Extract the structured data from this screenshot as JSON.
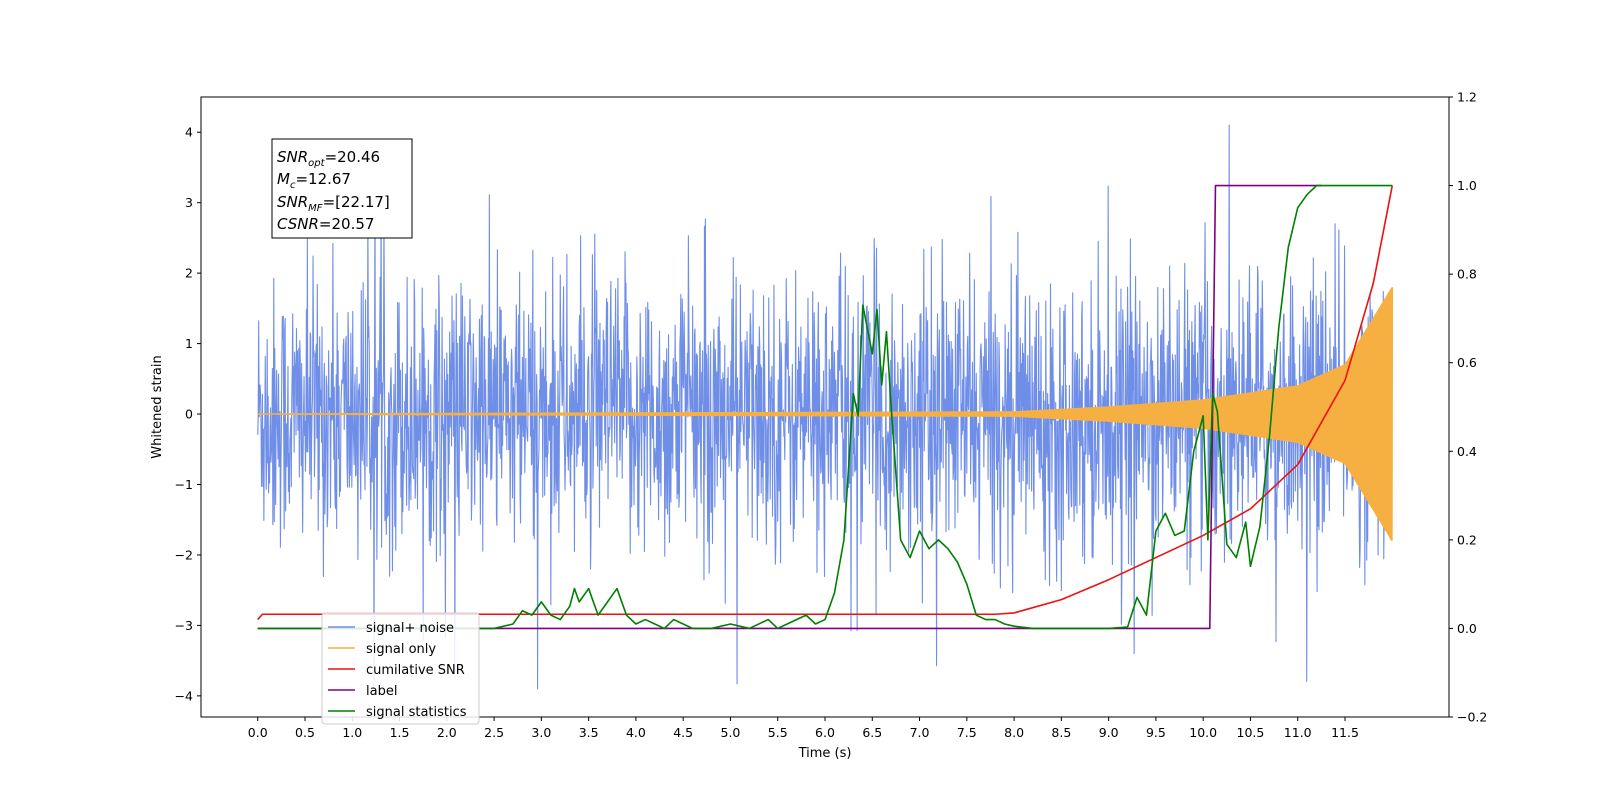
{
  "chart_data": {
    "type": "line",
    "title": "",
    "xlabel": "Time (s)",
    "ylabel": "Whitened strain",
    "ylabel_right": "",
    "xlim": [
      -0.6,
      12.6
    ],
    "ylim": [
      -4.3,
      4.5
    ],
    "ylim_right": [
      -0.2,
      1.2
    ],
    "x_ticks": [
      0.0,
      0.5,
      1.0,
      1.5,
      2.0,
      2.5,
      3.0,
      3.5,
      4.0,
      4.5,
      5.0,
      5.5,
      6.0,
      6.5,
      7.0,
      7.5,
      8.0,
      8.5,
      9.0,
      9.5,
      10.0,
      10.5,
      11.0,
      11.5
    ],
    "x_tick_labels": [
      "0.0",
      "0.5",
      "1.0",
      "1.5",
      "2.0",
      "2.5",
      "3.0",
      "3.5",
      "4.0",
      "4.5",
      "5.0",
      "5.5",
      "6.0",
      "6.5",
      "7.0",
      "7.5",
      "8.0",
      "8.5",
      "9.0",
      "9.5",
      "10.0",
      "10.5",
      "11.0",
      "11.5"
    ],
    "y_ticks_left": [
      -4,
      -3,
      -2,
      -1,
      0,
      1,
      2,
      3,
      4
    ],
    "y_tick_labels_left": [
      "−4",
      "−3",
      "−2",
      "−1",
      "0",
      "1",
      "2",
      "3",
      "4"
    ],
    "y_ticks_right": [
      -0.2,
      0.0,
      0.2,
      0.4,
      0.6,
      0.8,
      1.0,
      1.2
    ],
    "y_tick_labels_right": [
      "−0.2",
      "0.0",
      "0.2",
      "0.4",
      "0.6",
      "0.8",
      "1.0",
      "1.2"
    ],
    "grid": false,
    "legend_placement": "bottom-left",
    "stats_box": {
      "snr_opt": {
        "base": "SNR",
        "sub": "opt",
        "value": "=20.46"
      },
      "mc": {
        "base": "M",
        "sub": "c",
        "value": "=12.67"
      },
      "snr_mf": {
        "base": "SNR",
        "sub": "MF",
        "value": "=[22.17]"
      },
      "csnr": {
        "base": "CSNR",
        "sub": "",
        "value": "=20.57"
      }
    },
    "series": [
      {
        "name": "signal+ noise",
        "axis": "left",
        "color": "#6f8ee8",
        "kind": "noisy",
        "x_range": [
          0.0,
          12.0
        ],
        "envelope_typical": 1.5,
        "envelope_max": [
          -3.9,
          4.1
        ]
      },
      {
        "name": "signal only",
        "axis": "left",
        "color": "#f5b041",
        "kind": "chirp",
        "x_range": [
          0.0,
          12.0
        ],
        "amplitude": {
          "x": [
            0.0,
            8.0,
            9.0,
            10.0,
            11.0,
            11.5,
            12.0
          ],
          "y": [
            0.0,
            0.03,
            0.1,
            0.2,
            0.4,
            0.7,
            1.8
          ]
        }
      },
      {
        "name": "cumilative SNR",
        "axis": "right",
        "color": "#ee1111",
        "x": [
          0.0,
          0.05,
          1.0,
          2.0,
          3.0,
          4.0,
          5.0,
          6.0,
          7.0,
          7.8,
          8.0,
          8.5,
          9.0,
          9.5,
          10.0,
          10.5,
          11.0,
          11.5,
          11.8,
          12.0
        ],
        "y": [
          0.02,
          0.032,
          0.032,
          0.032,
          0.032,
          0.032,
          0.032,
          0.032,
          0.032,
          0.032,
          0.035,
          0.065,
          0.11,
          0.16,
          0.21,
          0.27,
          0.37,
          0.56,
          0.78,
          1.0
        ]
      },
      {
        "name": "label",
        "axis": "right",
        "color": "#800080",
        "x": [
          0.0,
          10.07,
          10.07,
          10.13,
          10.13,
          11.25
        ],
        "y": [
          0.0,
          0.0,
          0.0,
          1.0,
          1.0,
          1.0
        ]
      },
      {
        "name": "signal statistics",
        "axis": "right",
        "color": "#008000",
        "x": [
          0.0,
          2.0,
          2.5,
          2.7,
          2.8,
          2.9,
          3.0,
          3.1,
          3.2,
          3.3,
          3.35,
          3.4,
          3.5,
          3.6,
          3.7,
          3.8,
          3.9,
          4.0,
          4.1,
          4.2,
          4.3,
          4.4,
          4.5,
          4.6,
          4.8,
          5.0,
          5.2,
          5.4,
          5.5,
          5.6,
          5.8,
          5.9,
          6.0,
          6.1,
          6.2,
          6.3,
          6.35,
          6.4,
          6.5,
          6.55,
          6.6,
          6.65,
          6.7,
          6.75,
          6.8,
          6.9,
          7.0,
          7.1,
          7.2,
          7.3,
          7.4,
          7.5,
          7.6,
          7.7,
          7.8,
          7.9,
          8.0,
          8.2,
          8.6,
          9.0,
          9.2,
          9.3,
          9.4,
          9.5,
          9.6,
          9.7,
          9.8,
          9.9,
          10.0,
          10.05,
          10.1,
          10.15,
          10.25,
          10.35,
          10.45,
          10.5,
          10.6,
          10.7,
          10.8,
          10.9,
          11.0,
          11.1,
          11.2,
          11.5,
          12.0
        ],
        "y": [
          0.0,
          0.0,
          0.0,
          0.01,
          0.04,
          0.03,
          0.06,
          0.03,
          0.02,
          0.05,
          0.09,
          0.06,
          0.09,
          0.03,
          0.06,
          0.09,
          0.03,
          0.01,
          0.02,
          0.01,
          0.0,
          0.02,
          0.01,
          0.0,
          0.0,
          0.01,
          0.0,
          0.02,
          0.0,
          0.01,
          0.03,
          0.01,
          0.02,
          0.08,
          0.2,
          0.53,
          0.48,
          0.73,
          0.62,
          0.72,
          0.55,
          0.67,
          0.5,
          0.35,
          0.2,
          0.16,
          0.22,
          0.18,
          0.2,
          0.18,
          0.15,
          0.1,
          0.03,
          0.02,
          0.02,
          0.01,
          0.005,
          0.0,
          0.0,
          0.0,
          0.003,
          0.07,
          0.03,
          0.22,
          0.26,
          0.21,
          0.22,
          0.4,
          0.48,
          0.2,
          0.53,
          0.49,
          0.19,
          0.16,
          0.24,
          0.14,
          0.23,
          0.43,
          0.68,
          0.86,
          0.95,
          0.98,
          1.0,
          1.0,
          1.0
        ]
      }
    ]
  }
}
